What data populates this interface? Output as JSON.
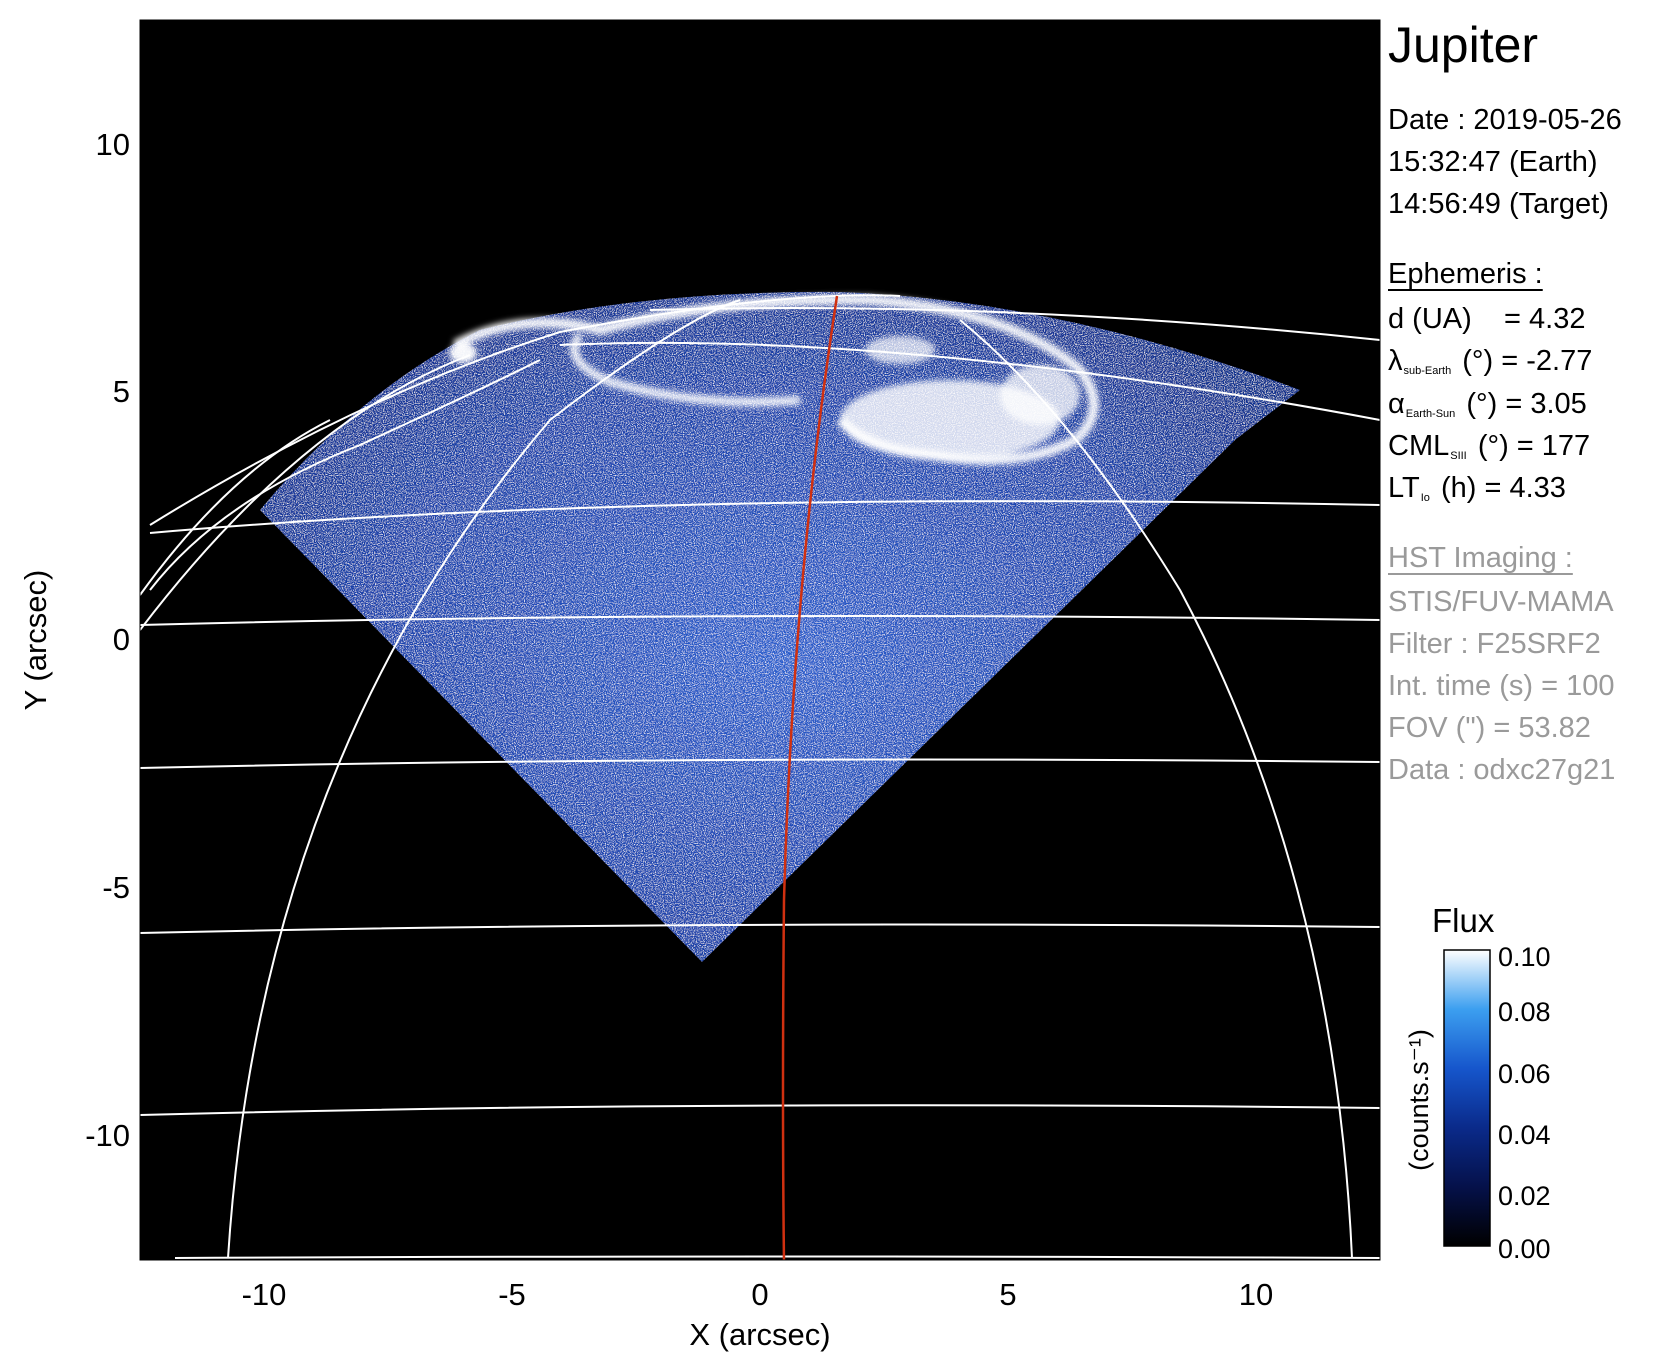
{
  "chart_data": {
    "type": "heatmap",
    "xlabel": "X (arcsec)",
    "ylabel": "Y (arcsec)",
    "xlim": [
      -12.5,
      12.5
    ],
    "ylim": [
      -12.5,
      12.5
    ],
    "x_ticks": [
      "-10",
      "-5",
      "0",
      "5",
      "10"
    ],
    "y_ticks": [
      "-10",
      "-5",
      "0",
      "5",
      "10"
    ],
    "colorbar": {
      "title": "Flux",
      "label": "(counts.s⁻¹)",
      "range": [
        0.0,
        0.1
      ],
      "ticks": [
        "0.00",
        "0.02",
        "0.04",
        "0.06",
        "0.08",
        "0.10"
      ]
    }
  },
  "info": {
    "title": "Jupiter",
    "date_line": "Date : 2019-05-26",
    "earth_time": "15:32:47 (Earth)",
    "target_time": "14:56:49 (Target)",
    "ephemeris_header": "Ephemeris :",
    "d": {
      "label": "d (UA)",
      "value": "= 4.32"
    },
    "lat": {
      "symbol": "λ",
      "sub": "sub-Earth",
      "unit": "(°)",
      "value": "= -2.77"
    },
    "alpha": {
      "symbol": "α",
      "sub": "Earth-Sun",
      "unit": "(°)",
      "value": "= 3.05"
    },
    "cml": {
      "symbol": "CML",
      "sub": "SIII",
      "unit": "(°)",
      "value": "= 177"
    },
    "lt": {
      "symbol": "LT",
      "sub": "Io",
      "unit": "(h)",
      "value": "= 4.33"
    },
    "hst_header": "HST Imaging :",
    "instrument": "STIS/FUV-MAMA",
    "filter": "Filter : F25SRF2",
    "int_time": "Int. time (s) = 100",
    "fov": "FOV (\") = 53.82",
    "data_id": "Data : odxc27g21"
  },
  "colors": {
    "grid": "#ffffff",
    "meridian": "#d03010",
    "background": "#000000",
    "emission": "#1e4fc8"
  }
}
